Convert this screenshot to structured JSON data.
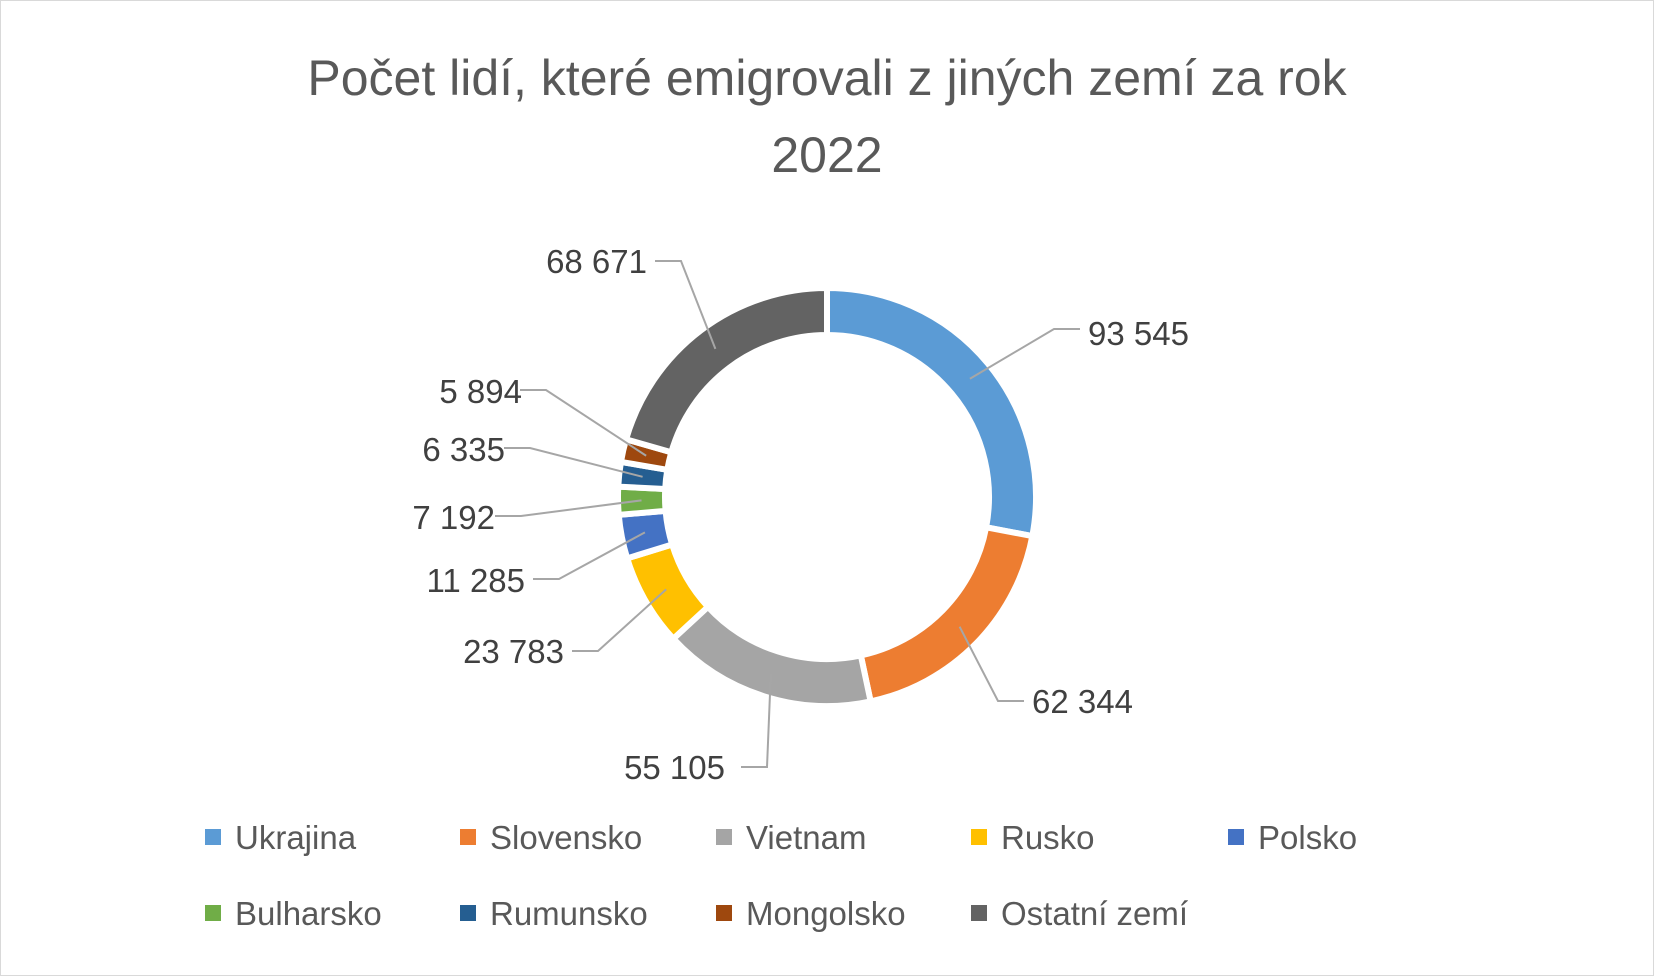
{
  "chart_data": {
    "type": "pie",
    "title_lines": [
      "Počet lidí, které emigrovali z jiných zemí za rok",
      "2022"
    ],
    "categories": [
      "Ukrajina",
      "Slovensko",
      "Vietnam",
      "Rusko",
      "Polsko",
      "Bulharsko",
      "Rumunsko",
      "Mongolsko",
      "Ostatní zemí"
    ],
    "values": [
      93545,
      62344,
      55105,
      23783,
      11285,
      7192,
      6335,
      5894,
      68671
    ],
    "data_labels": [
      "93 545",
      "62 344",
      "55 105",
      "23 783",
      "11 285",
      "7 192",
      "6 335",
      "5 894",
      "68 671"
    ],
    "colors": [
      "#5b9bd5",
      "#ed7d31",
      "#a5a5a5",
      "#ffc000",
      "#4472c4",
      "#70ad47",
      "#255e91",
      "#9e480e",
      "#636363"
    ],
    "legend_position": "bottom",
    "style": "doughnut"
  }
}
